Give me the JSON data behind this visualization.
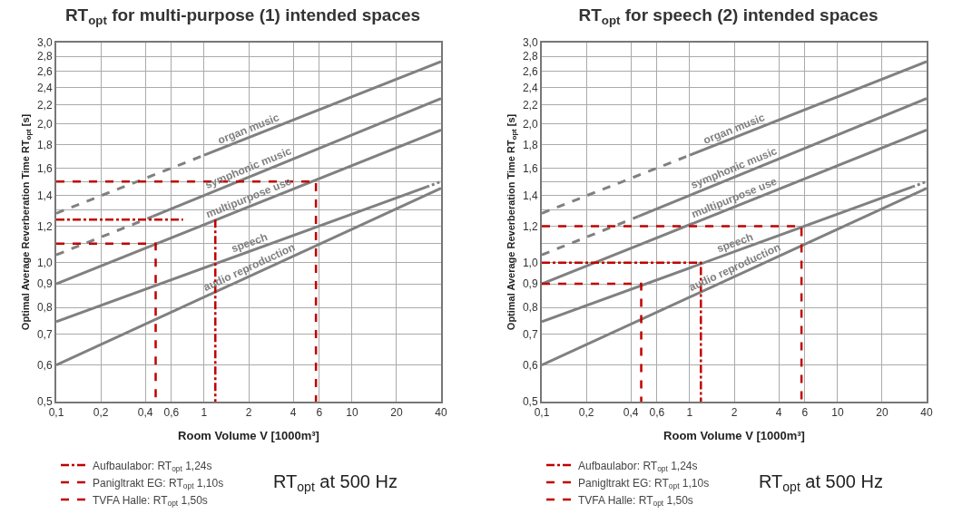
{
  "chart_data": [
    {
      "type": "line",
      "title": "RT$_{opt}$ for multi-purpose (1) intended spaces",
      "xlabel": "Room Volume V [1000m³]",
      "ylabel": "Optimal Average Reverberation Time RT$_{opt}$ [s]",
      "log": "xy",
      "grid": true,
      "legend": "bottom",
      "xlim": [
        0.1,
        40
      ],
      "ylim": [
        0.5,
        3.0
      ],
      "xticks": [
        {
          "value": 0.1,
          "label": "0,1"
        },
        {
          "value": 0.2,
          "label": "0,2"
        },
        {
          "value": 0.4,
          "label": "0,4"
        },
        {
          "value": 0.6,
          "label": "0,6"
        },
        1,
        2,
        4,
        6,
        10,
        20,
        40
      ],
      "yticks": [
        {
          "value": 0.5,
          "label": "0,5"
        },
        {
          "value": 0.6,
          "label": "0,6"
        },
        {
          "value": 0.7,
          "label": "0,7"
        },
        {
          "value": 0.8,
          "label": "0,8"
        },
        {
          "value": 0.9,
          "label": "0,9"
        },
        {
          "value": 1.0,
          "label": "1,0"
        },
        {
          "value": 1.1,
          "label": null
        },
        {
          "value": 1.2,
          "label": "1,2"
        },
        {
          "value": 1.3,
          "label": null
        },
        {
          "value": 1.4,
          "label": "1,4"
        },
        {
          "value": 1.5,
          "label": null
        },
        {
          "value": 1.6,
          "label": "1,6"
        },
        {
          "value": 1.8,
          "label": "1,8"
        },
        {
          "value": 2.0,
          "label": "2,0"
        },
        {
          "value": 2.2,
          "label": "2,2"
        },
        {
          "value": 2.4,
          "label": "2,4"
        },
        {
          "value": 2.6,
          "label": "2,6"
        },
        {
          "value": 2.8,
          "label": "2,8"
        },
        {
          "value": 3.0,
          "label": "3,0"
        }
      ],
      "series": [
        {
          "color": "#808080",
          "line_style": "dashed",
          "x": [
            0.1,
            1.0
          ],
          "values": [
            1.28,
            1.71
          ]
        },
        {
          "name": "organ music",
          "color": "#808080",
          "line_style": "solid",
          "x": [
            1.0,
            40
          ],
          "values": [
            1.71,
            2.73
          ]
        },
        {
          "color": "#808080",
          "line_style": "dashed",
          "x": [
            0.1,
            0.45
          ],
          "values": [
            1.04,
            1.26
          ]
        },
        {
          "name": "symphonic music",
          "color": "#808080",
          "line_style": "solid",
          "x": [
            0.45,
            40
          ],
          "values": [
            1.26,
            2.27
          ]
        },
        {
          "name": "multipurpose use",
          "color": "#808080",
          "line_style": "solid",
          "x": [
            0.1,
            40
          ],
          "values": [
            0.9,
            1.94
          ]
        },
        {
          "name": "speech",
          "color": "#808080",
          "line_style": "solid",
          "x": [
            0.1,
            32
          ],
          "values": [
            0.745,
            1.46
          ]
        },
        {
          "color": "#808080",
          "line_style": "dotted",
          "x": [
            32,
            40
          ],
          "values": [
            1.46,
            1.5
          ]
        },
        {
          "name": "audio reproduction",
          "color": "#808080",
          "line_style": "solid",
          "x": [
            0.1,
            40
          ],
          "values": [
            0.6,
            1.45
          ]
        },
        {
          "name": "Aufbaulabor: RT$_{opt}$ 1,24s",
          "color": "#c00000",
          "line_style": "dashdot",
          "x": [
            0.1,
            0.72,
            null,
            1.19,
            1.19
          ],
          "values": [
            1.24,
            1.24,
            null,
            1.24,
            0.5
          ]
        },
        {
          "name": "Panigltrakt EG: RT$_{opt}$ 1,10s",
          "color": "#c00000",
          "line_style": "dashed",
          "x": [
            0.1,
            0.47,
            0.47
          ],
          "values": [
            1.1,
            1.1,
            0.5
          ]
        },
        {
          "name": "TVFA Halle: RT$_{opt}$ 1,50s",
          "color": "#c00000",
          "line_style": "dashed",
          "x": [
            0.1,
            5.7,
            5.7
          ],
          "values": [
            1.5,
            1.5,
            0.5
          ]
        }
      ],
      "annotations": [
        "RT$_{opt}$ at 500 Hz"
      ]
    },
    {
      "type": "line",
      "title": "RT$_{opt}$ for speech (2) intended spaces",
      "xlabel": "Room Volume V [1000m³]",
      "ylabel": "Optimal Average Reverberation Time RT$_{opt}$ [s]",
      "log": "xy",
      "grid": true,
      "legend": "bottom",
      "xlim": [
        0.1,
        40
      ],
      "ylim": [
        0.5,
        3.0
      ],
      "xticks": [
        {
          "value": 0.1,
          "label": "0,1"
        },
        {
          "value": 0.2,
          "label": "0,2"
        },
        {
          "value": 0.4,
          "label": "0,4"
        },
        {
          "value": 0.6,
          "label": "0,6"
        },
        1,
        2,
        4,
        6,
        10,
        20,
        40
      ],
      "yticks": [
        {
          "value": 0.5,
          "label": "0,5"
        },
        {
          "value": 0.6,
          "label": "0,6"
        },
        {
          "value": 0.7,
          "label": "0,7"
        },
        {
          "value": 0.8,
          "label": "0,8"
        },
        {
          "value": 0.9,
          "label": "0,9"
        },
        {
          "value": 1.0,
          "label": "1,0"
        },
        {
          "value": 1.1,
          "label": null
        },
        {
          "value": 1.2,
          "label": "1,2"
        },
        {
          "value": 1.3,
          "label": null
        },
        {
          "value": 1.4,
          "label": "1,4"
        },
        {
          "value": 1.5,
          "label": null
        },
        {
          "value": 1.6,
          "label": "1,6"
        },
        {
          "value": 1.8,
          "label": "1,8"
        },
        {
          "value": 2.0,
          "label": "2,0"
        },
        {
          "value": 2.2,
          "label": "2,2"
        },
        {
          "value": 2.4,
          "label": "2,4"
        },
        {
          "value": 2.6,
          "label": "2,6"
        },
        {
          "value": 2.8,
          "label": "2,8"
        },
        {
          "value": 3.0,
          "label": "3,0"
        }
      ],
      "series": [
        {
          "color": "#808080",
          "line_style": "dashed",
          "x": [
            0.1,
            1.0
          ],
          "values": [
            1.28,
            1.71
          ]
        },
        {
          "name": "organ music",
          "color": "#808080",
          "line_style": "solid",
          "x": [
            1.0,
            40
          ],
          "values": [
            1.71,
            2.73
          ]
        },
        {
          "color": "#808080",
          "line_style": "dashed",
          "x": [
            0.1,
            0.45
          ],
          "values": [
            1.04,
            1.26
          ]
        },
        {
          "name": "symphonic music",
          "color": "#808080",
          "line_style": "solid",
          "x": [
            0.45,
            40
          ],
          "values": [
            1.26,
            2.27
          ]
        },
        {
          "name": "multipurpose use",
          "color": "#808080",
          "line_style": "solid",
          "x": [
            0.1,
            40
          ],
          "values": [
            0.9,
            1.94
          ]
        },
        {
          "name": "speech",
          "color": "#808080",
          "line_style": "solid",
          "x": [
            0.1,
            32
          ],
          "values": [
            0.745,
            1.46
          ]
        },
        {
          "color": "#808080",
          "line_style": "dotted",
          "x": [
            32,
            40
          ],
          "values": [
            1.46,
            1.5
          ]
        },
        {
          "name": "audio reproduction",
          "color": "#808080",
          "line_style": "solid",
          "x": [
            0.1,
            40
          ],
          "values": [
            0.6,
            1.45
          ]
        },
        {
          "name": "Aufbaulabor: RT$_{opt}$ 1,24s",
          "color": "#c00000",
          "line_style": "dashdot",
          "x": [
            0.1,
            1.19,
            1.19
          ],
          "values": [
            1.0,
            1.0,
            0.5
          ]
        },
        {
          "name": "Panigltrakt EG: RT$_{opt}$ 1,10s",
          "color": "#c00000",
          "line_style": "dashed",
          "x": [
            0.1,
            0.47,
            0.47
          ],
          "values": [
            0.9,
            0.9,
            0.5
          ]
        },
        {
          "name": "TVFA Halle: RT$_{opt}$ 1,50s",
          "color": "#c00000",
          "line_style": "dashed",
          "x": [
            0.1,
            5.7,
            5.7
          ],
          "values": [
            1.2,
            1.2,
            0.5
          ]
        }
      ],
      "annotations": [
        "RT$_{opt}$ at 500 Hz"
      ]
    }
  ]
}
